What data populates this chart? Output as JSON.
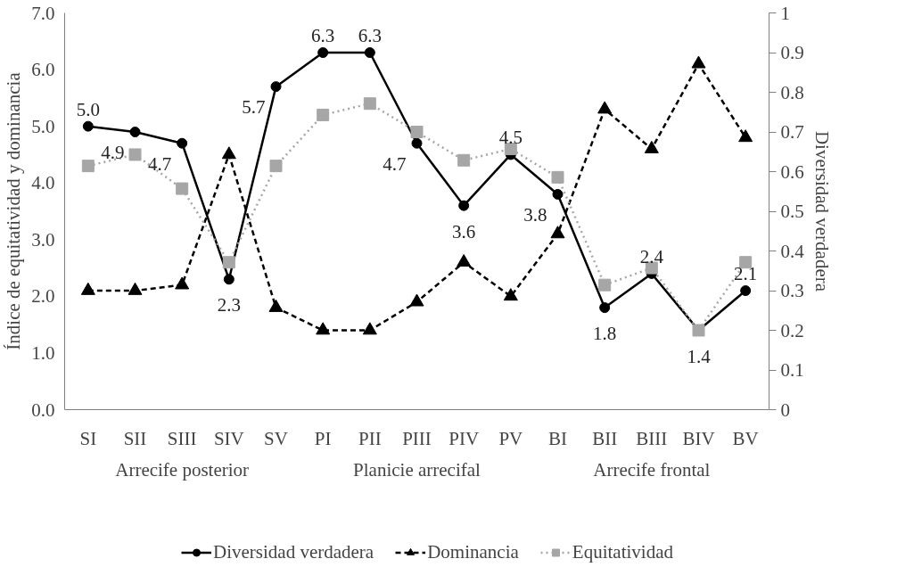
{
  "chart_data": {
    "type": "line",
    "categories": [
      "SI",
      "SII",
      "SIII",
      "SIV",
      "SV",
      "PI",
      "PII",
      "PIII",
      "PIV",
      "PV",
      "BI",
      "BII",
      "BIII",
      "BIV",
      "BV"
    ],
    "series": [
      {
        "name": "Diversidad verdadera",
        "color": "#000000",
        "marker": "circle",
        "line_style": "solid",
        "values": [
          5.0,
          4.9,
          4.7,
          2.3,
          5.7,
          6.3,
          6.3,
          4.7,
          3.6,
          4.5,
          3.8,
          1.8,
          2.4,
          1.4,
          2.1
        ],
        "value_labels": [
          "5.0",
          "4.9",
          "4.7",
          "2.3",
          "5.7",
          "6.3",
          "6.3",
          "4.7",
          "3.6",
          "4.5",
          "3.8",
          "1.8",
          "2.4",
          "1.4",
          "2.1"
        ]
      },
      {
        "name": "Dominancia",
        "color": "#000000",
        "marker": "triangle",
        "line_style": "dashed",
        "values": [
          2.1,
          2.1,
          2.2,
          4.5,
          1.8,
          1.4,
          1.4,
          1.9,
          2.6,
          2.0,
          3.1,
          5.3,
          4.6,
          6.1,
          4.8
        ]
      },
      {
        "name": "Equitatividad",
        "color": "#a6a6a6",
        "marker": "square",
        "line_style": "dotted",
        "values": [
          4.3,
          4.5,
          3.9,
          2.6,
          4.3,
          5.2,
          5.4,
          4.9,
          4.4,
          4.6,
          4.1,
          2.2,
          2.5,
          1.4,
          2.6
        ]
      }
    ],
    "ylabel": "Índice de equitatividad y dominancia",
    "y2label": "Diversidad verdadera",
    "ylim": [
      0,
      7
    ],
    "yticks": [
      {
        "value": 0,
        "label": "0.0"
      },
      {
        "value": 1,
        "label": "1.0"
      },
      {
        "value": 2,
        "label": "2.0"
      },
      {
        "value": 3,
        "label": "3.0"
      },
      {
        "value": 4,
        "label": "4.0"
      },
      {
        "value": 5,
        "label": "5.0"
      },
      {
        "value": 6,
        "label": "6.0"
      },
      {
        "value": 7,
        "label": "7.0"
      }
    ],
    "y2lim": [
      0,
      1
    ],
    "y2ticks": [
      0,
      0.1,
      0.2,
      0.3,
      0.4,
      0.5,
      0.6,
      0.7,
      0.8,
      0.9,
      1
    ],
    "annotations": [
      "Arrecife posterior",
      "Planicie arrecifal",
      "Arrecife frontal"
    ],
    "grid": false,
    "legend": "bottom"
  }
}
